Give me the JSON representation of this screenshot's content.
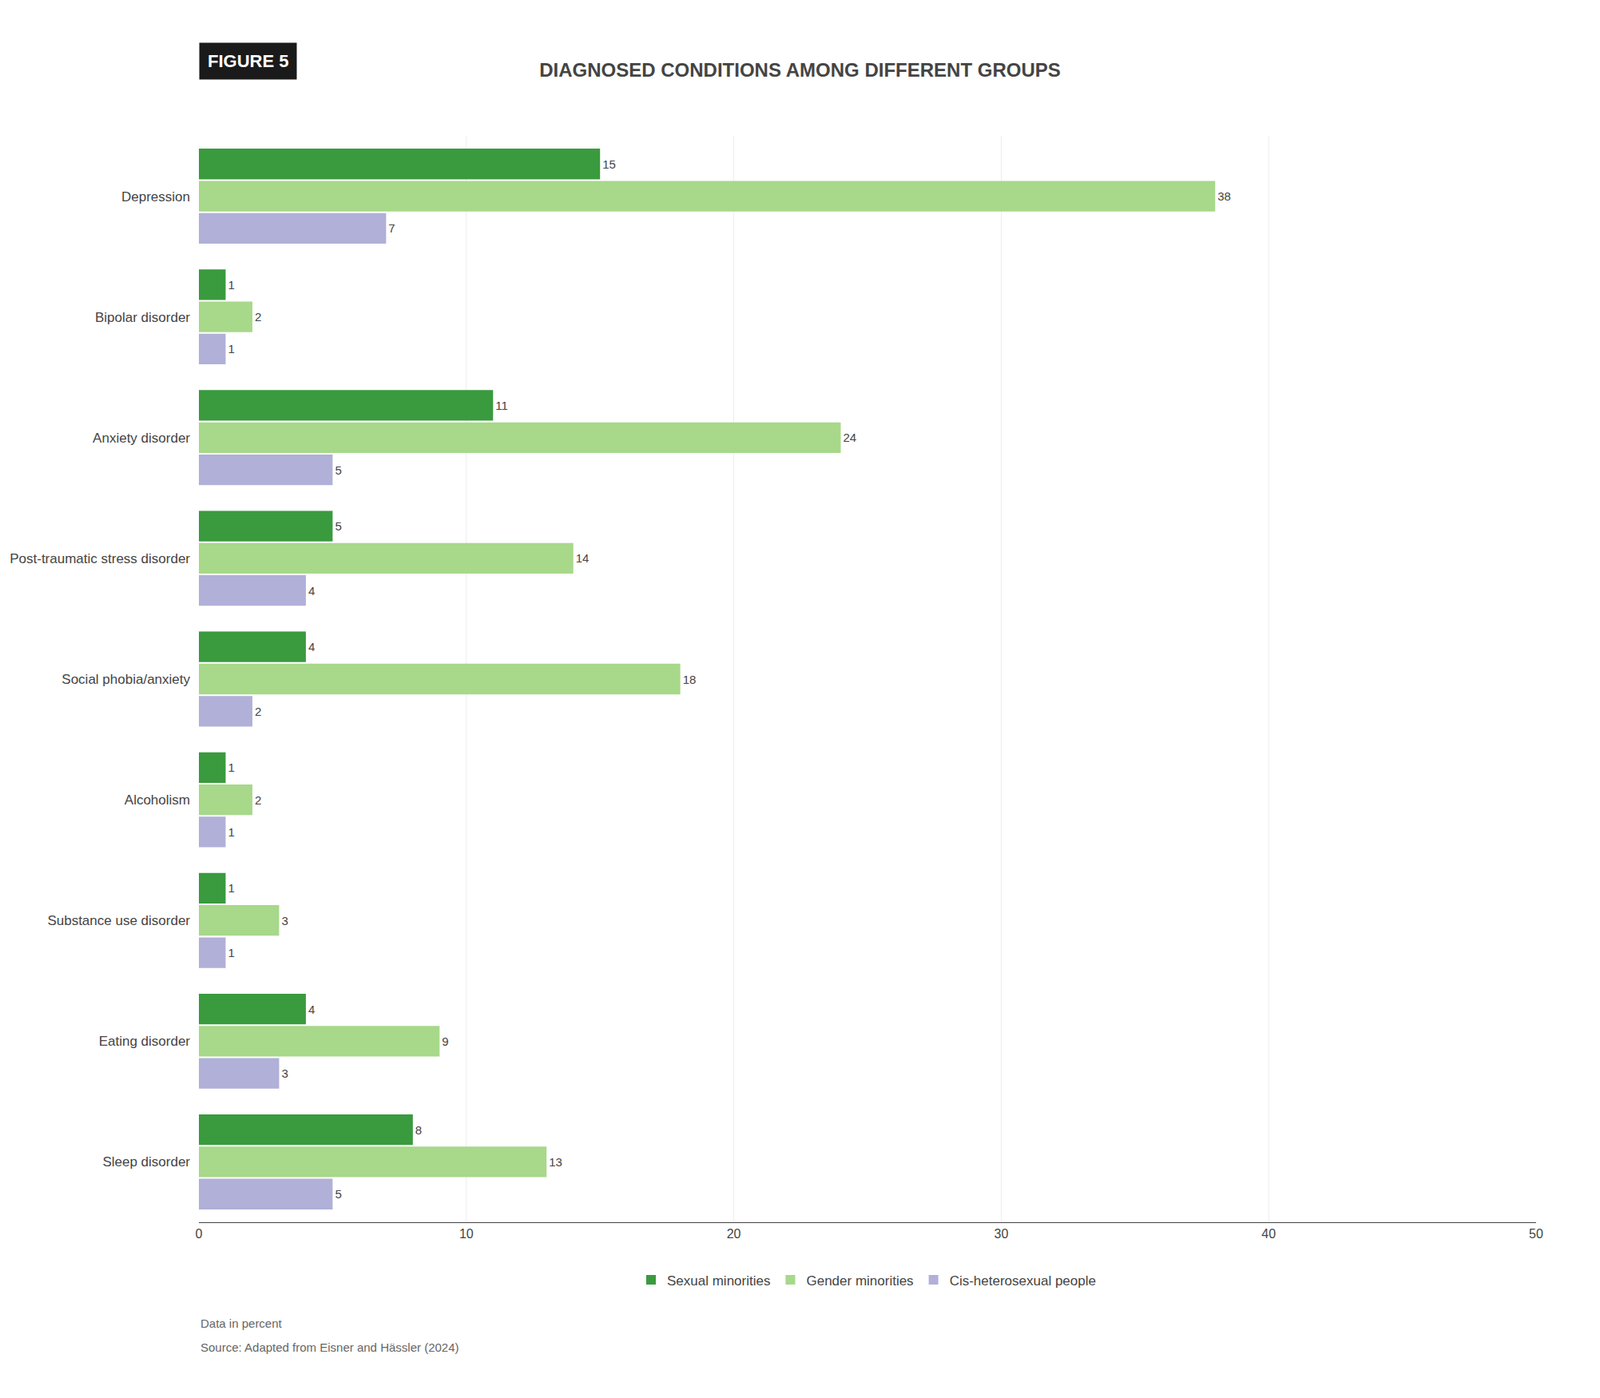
{
  "chart_data": {
    "type": "bar",
    "orientation": "horizontal",
    "title": "DIAGNOSED CONDITIONS AMONG DIFFERENT GROUPS",
    "annotations": [
      "FIGURE 5",
      "Data in percent",
      "Source: Adapted from Eisner and Hässler (2024)"
    ],
    "categories": [
      "Depression",
      "Bipolar disorder",
      "Anxiety disorder",
      "Post-traumatic stress disorder",
      "Social phobia/anxiety",
      "Alcoholism",
      "Substance use disorder",
      "Eating disorder",
      "Sleep disorder"
    ],
    "series": [
      {
        "name": "Sexual minorities",
        "color": "#3a9a3e",
        "values": [
          15,
          1,
          11,
          5,
          4,
          1,
          1,
          4,
          8
        ]
      },
      {
        "name": "Gender minorities",
        "color": "#a8d88a",
        "values": [
          38,
          2,
          24,
          14,
          18,
          2,
          3,
          9,
          13
        ]
      },
      {
        "name": "Cis-heterosexual people",
        "color": "#b0b0d8",
        "values": [
          7,
          1,
          5,
          4,
          2,
          1,
          1,
          3,
          5
        ]
      }
    ],
    "xlim": [
      0,
      50
    ],
    "xticks": [
      0,
      10,
      20,
      30,
      40,
      50
    ],
    "grid": true,
    "data_labels": true,
    "legend": "bottom"
  }
}
